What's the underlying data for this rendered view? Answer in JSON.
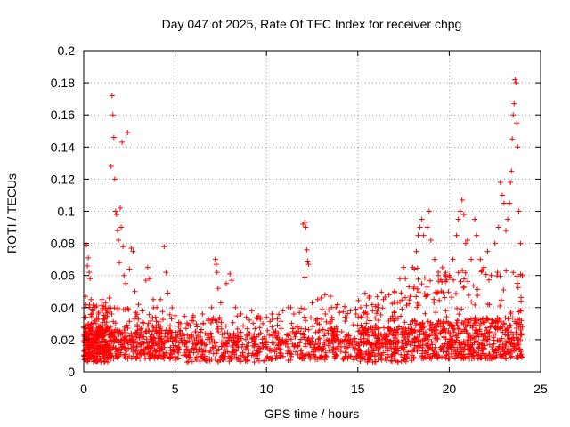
{
  "chart_data": {
    "type": "scatter",
    "title": "Day 047 of 2025, Rate Of TEC Index for receiver chpg",
    "xlabel": "GPS time / hours",
    "ylabel": "ROTI / TECUs",
    "xlim": [
      0,
      25
    ],
    "ylim": [
      0,
      0.2
    ],
    "grid": true,
    "marker": "+",
    "x_ticks": [
      {
        "value": 0,
        "label": "0"
      },
      {
        "value": 5,
        "label": "5"
      },
      {
        "value": 10,
        "label": "10"
      },
      {
        "value": 15,
        "label": "15"
      },
      {
        "value": 20,
        "label": "20"
      },
      {
        "value": 25,
        "label": "25"
      }
    ],
    "y_ticks": [
      {
        "value": 0,
        "label": "0"
      },
      {
        "value": 0.02,
        "label": "0.02"
      },
      {
        "value": 0.04,
        "label": "0.04"
      },
      {
        "value": 0.06,
        "label": "0.06"
      },
      {
        "value": 0.08,
        "label": "0.08"
      },
      {
        "value": 0.1,
        "label": "0.1"
      },
      {
        "value": 0.12,
        "label": "0.12"
      },
      {
        "value": 0.14,
        "label": "0.14"
      },
      {
        "value": 0.16,
        "label": "0.16"
      },
      {
        "value": 0.18,
        "label": "0.18"
      },
      {
        "value": 0.2,
        "label": "0.2"
      }
    ],
    "series": [
      {
        "name": "ROTI",
        "color": "#ff0000",
        "points": [
          [
            0.05,
            0.008
          ],
          [
            0.1,
            0.047
          ],
          [
            0.15,
            0.079
          ],
          [
            0.2,
            0.066
          ],
          [
            0.25,
            0.071
          ],
          [
            0.3,
            0.062
          ],
          [
            0.35,
            0.058
          ],
          [
            0.4,
            0.045
          ],
          [
            0.5,
            0.038
          ],
          [
            0.6,
            0.032
          ],
          [
            0.7,
            0.041
          ],
          [
            0.8,
            0.036
          ],
          [
            0.9,
            0.028
          ],
          [
            1.0,
            0.045
          ],
          [
            1.1,
            0.033
          ],
          [
            1.2,
            0.043
          ],
          [
            1.4,
            0.046
          ],
          [
            1.5,
            0.128
          ],
          [
            1.55,
            0.172
          ],
          [
            1.6,
            0.16
          ],
          [
            1.65,
            0.146
          ],
          [
            1.7,
            0.12
          ],
          [
            1.75,
            0.1
          ],
          [
            1.8,
            0.098
          ],
          [
            1.85,
            0.088
          ],
          [
            1.9,
            0.082
          ],
          [
            1.95,
            0.068
          ],
          [
            2.0,
            0.102
          ],
          [
            2.05,
            0.09
          ],
          [
            2.1,
            0.143
          ],
          [
            2.15,
            0.078
          ],
          [
            2.2,
            0.06
          ],
          [
            2.3,
            0.055
          ],
          [
            2.4,
            0.149
          ],
          [
            2.5,
            0.064
          ],
          [
            2.6,
            0.077
          ],
          [
            2.7,
            0.075
          ],
          [
            2.8,
            0.05
          ],
          [
            3.0,
            0.042
          ],
          [
            3.2,
            0.038
          ],
          [
            3.4,
            0.057
          ],
          [
            3.5,
            0.065
          ],
          [
            3.6,
            0.058
          ],
          [
            3.8,
            0.045
          ],
          [
            4.0,
            0.04
          ],
          [
            4.2,
            0.045
          ],
          [
            4.4,
            0.078
          ],
          [
            4.5,
            0.062
          ],
          [
            4.6,
            0.049
          ],
          [
            4.8,
            0.033
          ],
          [
            5.0,
            0.035
          ],
          [
            5.3,
            0.03
          ],
          [
            5.6,
            0.027
          ],
          [
            5.9,
            0.032
          ],
          [
            6.2,
            0.028
          ],
          [
            6.5,
            0.036
          ],
          [
            6.8,
            0.032
          ],
          [
            7.0,
            0.04
          ],
          [
            7.2,
            0.07
          ],
          [
            7.25,
            0.067
          ],
          [
            7.3,
            0.062
          ],
          [
            7.35,
            0.052
          ],
          [
            7.5,
            0.043
          ],
          [
            7.8,
            0.055
          ],
          [
            8.0,
            0.061
          ],
          [
            8.1,
            0.057
          ],
          [
            8.3,
            0.04
          ],
          [
            8.6,
            0.036
          ],
          [
            8.9,
            0.034
          ],
          [
            9.2,
            0.038
          ],
          [
            9.5,
            0.033
          ],
          [
            9.8,
            0.03
          ],
          [
            10.0,
            0.034
          ],
          [
            10.3,
            0.036
          ],
          [
            10.6,
            0.029
          ],
          [
            10.9,
            0.038
          ],
          [
            11.2,
            0.04
          ],
          [
            11.5,
            0.036
          ],
          [
            11.8,
            0.037
          ],
          [
            12.0,
            0.092
          ],
          [
            12.1,
            0.093
          ],
          [
            12.15,
            0.09
          ],
          [
            12.2,
            0.076
          ],
          [
            12.25,
            0.069
          ],
          [
            12.3,
            0.067
          ],
          [
            12.1,
            0.059
          ],
          [
            12.5,
            0.043
          ],
          [
            12.8,
            0.045
          ],
          [
            13.0,
            0.046
          ],
          [
            13.2,
            0.048
          ],
          [
            13.5,
            0.047
          ],
          [
            13.8,
            0.04
          ],
          [
            14.0,
            0.037
          ],
          [
            14.3,
            0.034
          ],
          [
            14.6,
            0.038
          ],
          [
            14.9,
            0.036
          ],
          [
            15.2,
            0.034
          ],
          [
            15.5,
            0.036
          ],
          [
            15.8,
            0.038
          ],
          [
            16.1,
            0.04
          ],
          [
            16.4,
            0.045
          ],
          [
            16.7,
            0.048
          ],
          [
            17.0,
            0.05
          ],
          [
            17.3,
            0.058
          ],
          [
            17.5,
            0.065
          ],
          [
            17.6,
            0.058
          ],
          [
            17.8,
            0.053
          ],
          [
            18.0,
            0.065
          ],
          [
            18.2,
            0.075
          ],
          [
            18.3,
            0.085
          ],
          [
            18.4,
            0.09
          ],
          [
            18.5,
            0.095
          ],
          [
            18.6,
            0.085
          ],
          [
            18.8,
            0.09
          ],
          [
            18.9,
            0.1
          ],
          [
            19.0,
            0.082
          ],
          [
            19.2,
            0.07
          ],
          [
            19.4,
            0.06
          ],
          [
            19.6,
            0.056
          ],
          [
            19.8,
            0.062
          ],
          [
            20.0,
            0.06
          ],
          [
            20.2,
            0.07
          ],
          [
            20.4,
            0.085
          ],
          [
            20.5,
            0.095
          ],
          [
            20.6,
            0.1
          ],
          [
            20.7,
            0.107
          ],
          [
            20.8,
            0.098
          ],
          [
            20.9,
            0.08
          ],
          [
            21.0,
            0.082
          ],
          [
            21.2,
            0.07
          ],
          [
            21.4,
            0.095
          ],
          [
            21.5,
            0.085
          ],
          [
            21.7,
            0.07
          ],
          [
            21.9,
            0.065
          ],
          [
            22.1,
            0.075
          ],
          [
            22.3,
            0.06
          ],
          [
            22.5,
            0.08
          ],
          [
            22.7,
            0.09
          ],
          [
            22.8,
            0.118
          ],
          [
            22.9,
            0.11
          ],
          [
            23.0,
            0.105
          ],
          [
            23.1,
            0.088
          ],
          [
            23.2,
            0.095
          ],
          [
            23.3,
            0.105
          ],
          [
            23.35,
            0.118
          ],
          [
            23.4,
            0.125
          ],
          [
            23.45,
            0.145
          ],
          [
            23.5,
            0.16
          ],
          [
            23.55,
            0.167
          ],
          [
            23.6,
            0.182
          ],
          [
            23.65,
            0.18
          ],
          [
            23.7,
            0.155
          ],
          [
            23.75,
            0.14
          ],
          [
            23.8,
            0.1
          ],
          [
            23.9,
            0.08
          ],
          [
            24.0,
            0.06
          ]
        ]
      }
    ],
    "dense_band": {
      "segments": [
        {
          "x_start": 0.0,
          "x_end": 1.5,
          "base_low": 0.006,
          "base_high": 0.028,
          "peak": 0.042
        },
        {
          "x_start": 1.5,
          "x_end": 5.0,
          "base_low": 0.008,
          "base_high": 0.026,
          "peak": 0.04
        },
        {
          "x_start": 5.0,
          "x_end": 10.0,
          "base_low": 0.006,
          "base_high": 0.024,
          "peak": 0.036
        },
        {
          "x_start": 10.0,
          "x_end": 15.0,
          "base_low": 0.007,
          "base_high": 0.027,
          "peak": 0.042
        },
        {
          "x_start": 15.0,
          "x_end": 18.0,
          "base_low": 0.006,
          "base_high": 0.028,
          "peak": 0.05
        },
        {
          "x_start": 18.0,
          "x_end": 21.0,
          "base_low": 0.008,
          "base_high": 0.032,
          "peak": 0.065
        },
        {
          "x_start": 21.0,
          "x_end": 24.0,
          "base_low": 0.008,
          "base_high": 0.034,
          "peak": 0.065
        }
      ],
      "points_per_segment": 320
    }
  }
}
